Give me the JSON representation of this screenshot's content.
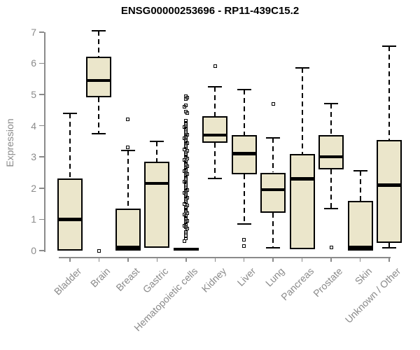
{
  "title": "ENSG00000253696 - RP11-439C15.2",
  "colors": {
    "box_fill": "#EBE6CB",
    "box_border": "#000000",
    "axis": "#8a8a8a",
    "label_text": "#8a8a8a",
    "title_text": "#000000"
  },
  "chart_data": {
    "type": "boxplot",
    "title": "ENSG00000253696 - RP11-439C15.2",
    "xlabel": "",
    "ylabel": "Expression",
    "ylim": [
      0,
      7
    ],
    "yticks": [
      0,
      1,
      2,
      3,
      4,
      5,
      6,
      7
    ],
    "grid": false,
    "legend": "none",
    "categories": [
      "Bladder",
      "Brain",
      "Breast",
      "Gastric",
      "Hematopoietic cells",
      "Kidney",
      "Liver",
      "Lung",
      "Pancreas",
      "Prostate",
      "Skin",
      "Unknown / Other"
    ],
    "series": [
      {
        "category": "Bladder",
        "low": 0,
        "q1": 0,
        "median": 1.0,
        "q3": 2.3,
        "high": 4.4,
        "outliers": []
      },
      {
        "category": "Brain",
        "low": 3.75,
        "q1": 4.9,
        "median": 5.45,
        "q3": 6.2,
        "high": 7.05,
        "outliers": [
          0
        ]
      },
      {
        "category": "Breast",
        "low": 0,
        "q1": 0,
        "median": 0.1,
        "q3": 1.35,
        "high": 3.2,
        "outliers": [
          3.3,
          4.2
        ]
      },
      {
        "category": "Gastric",
        "low": 0.1,
        "q1": 0.1,
        "median": 2.15,
        "q3": 2.85,
        "high": 3.5,
        "outliers": []
      },
      {
        "category": "Hematopoietic cells",
        "low": 0,
        "q1": 0,
        "median": 0.04,
        "q3": 0.08,
        "high": 0.08,
        "outliers": [
          0.3,
          0.4,
          0.45,
          0.55,
          0.6,
          0.7,
          0.75,
          0.8,
          0.85,
          0.9,
          0.95,
          1,
          1.05,
          1.1,
          1.15,
          1.2,
          1.25,
          1.3,
          1.35,
          1.4,
          1.45,
          1.5,
          1.55,
          1.6,
          1.65,
          1.7,
          1.75,
          1.8,
          1.85,
          1.9,
          1.95,
          2,
          2.05,
          2.1,
          2.15,
          2.2,
          2.25,
          2.3,
          2.35,
          2.4,
          2.45,
          2.5,
          2.55,
          2.6,
          2.65,
          2.7,
          2.75,
          2.8,
          2.85,
          2.9,
          2.95,
          3,
          3.05,
          3.1,
          3.15,
          3.2,
          3.25,
          3.3,
          3.35,
          3.4,
          3.45,
          3.5,
          3.55,
          3.6,
          3.65,
          3.7,
          3.75,
          3.8,
          3.85,
          3.9,
          3.95,
          4,
          4.05,
          4.1,
          4.15,
          4.4,
          4.45,
          4.6,
          4.65,
          4.85,
          4.9,
          4.95
        ]
      },
      {
        "category": "Kidney",
        "low": 2.3,
        "q1": 3.45,
        "median": 3.7,
        "q3": 4.3,
        "high": 5.25,
        "outliers": [
          5.9
        ]
      },
      {
        "category": "Liver",
        "low": 0.85,
        "q1": 2.45,
        "median": 3.1,
        "q3": 3.7,
        "high": 5.15,
        "outliers": [
          0.15,
          0.35
        ]
      },
      {
        "category": "Lung",
        "low": 0.1,
        "q1": 1.2,
        "median": 1.95,
        "q3": 2.5,
        "high": 3.6,
        "outliers": [
          4.7
        ]
      },
      {
        "category": "Pancreas",
        "low": 0.05,
        "q1": 0.05,
        "median": 2.3,
        "q3": 3.1,
        "high": 5.85,
        "outliers": []
      },
      {
        "category": "Prostate",
        "low": 1.35,
        "q1": 2.6,
        "median": 3.0,
        "q3": 3.7,
        "high": 4.7,
        "outliers": [
          0.1
        ]
      },
      {
        "category": "Skin",
        "low": 0,
        "q1": 0,
        "median": 0.1,
        "q3": 1.6,
        "high": 2.55,
        "outliers": []
      },
      {
        "category": "Unknown / Other",
        "low": 0.1,
        "q1": 0.25,
        "median": 2.1,
        "q3": 3.55,
        "high": 6.55,
        "outliers": []
      }
    ]
  }
}
